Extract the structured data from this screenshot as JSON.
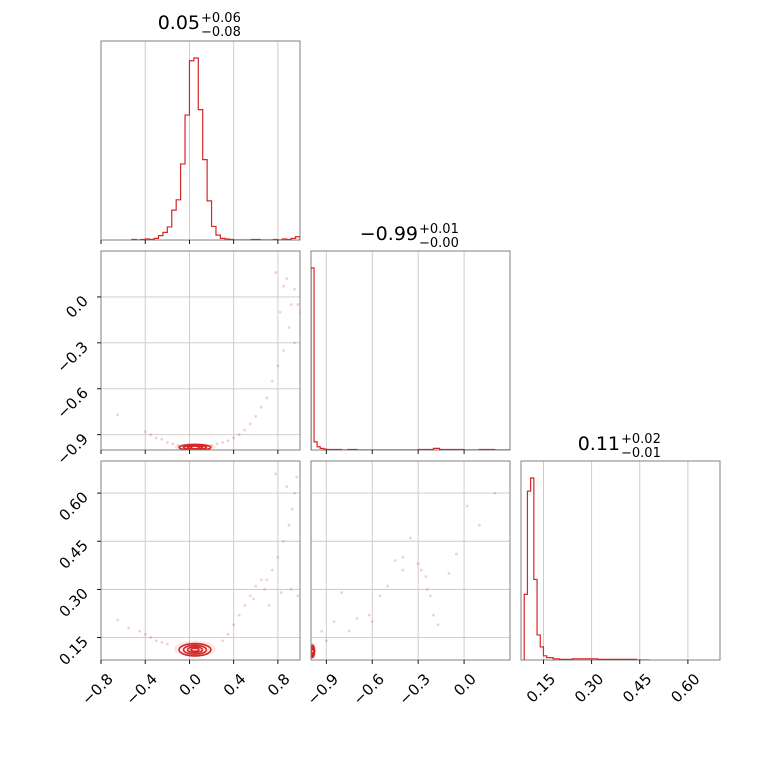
{
  "colors": {
    "accent": "#d62728",
    "frame": "#808080",
    "grid": "#c8c8c8"
  },
  "chart_data": {
    "type": "corner",
    "params": [
      {
        "median_label": "0.05",
        "plus_label": "+0.06",
        "minus_label": "−0.08",
        "range": [
          -0.8,
          1.0
        ]
      },
      {
        "median_label": "−0.99",
        "plus_label": "+0.01",
        "minus_label": "−0.00",
        "range": [
          -1.0,
          0.3
        ]
      },
      {
        "median_label": "0.11",
        "plus_label": "+0.02",
        "minus_label": "−0.01",
        "range": [
          0.08,
          0.7
        ]
      }
    ],
    "ticks": {
      "p0_values": [
        -0.8,
        -0.4,
        0.0,
        0.4,
        0.8
      ],
      "p0_labels": [
        "−0.8",
        "−0.4",
        "0.0",
        "0.4",
        "0.8"
      ],
      "p1_values": [
        -0.9,
        -0.6,
        -0.3,
        0.0
      ],
      "p1_labels": [
        "−0.9",
        "−0.6",
        "−0.3",
        "0.0"
      ],
      "p2_values": [
        0.15,
        0.3,
        0.45,
        0.6
      ],
      "p2_labels": [
        "0.15",
        "0.30",
        "0.45",
        "0.60"
      ]
    },
    "histograms": [
      {
        "param": 0,
        "bins": [
          -0.52,
          -0.48,
          -0.44,
          -0.4,
          -0.36,
          -0.32,
          -0.28,
          -0.24,
          -0.2,
          -0.16,
          -0.12,
          -0.08,
          -0.04,
          0.0,
          0.04,
          0.08,
          0.12,
          0.16,
          0.2,
          0.24,
          0.28,
          0.32,
          0.36,
          0.4,
          0.44,
          0.48,
          0.52,
          0.56,
          0.6,
          0.64,
          0.68,
          0.72,
          0.76,
          0.8,
          0.84,
          0.88,
          0.92,
          0.96,
          1.0
        ],
        "counts": [
          1,
          0,
          1,
          2,
          1,
          3,
          8,
          14,
          24,
          55,
          74,
          140,
          230,
          330,
          335,
          240,
          148,
          72,
          25,
          9,
          3,
          2,
          1,
          0,
          0,
          0,
          0,
          1,
          1,
          0,
          0,
          0,
          1,
          0,
          2,
          1,
          3,
          6
        ]
      },
      {
        "param": 1,
        "bins": [
          -1.0,
          -0.98,
          -0.96,
          -0.94,
          -0.92,
          -0.9,
          -0.88,
          -0.86,
          -0.84,
          -0.82,
          -0.8,
          -0.76,
          -0.7,
          -0.6,
          -0.5,
          -0.4,
          -0.3,
          -0.24,
          -0.2,
          -0.16,
          -0.1,
          0.0,
          0.1,
          0.2,
          0.3
        ],
        "counts": [
          335,
          15,
          6,
          3,
          2,
          1,
          1,
          1,
          1,
          1,
          0,
          1,
          0,
          0,
          0,
          0,
          1,
          1,
          3,
          1,
          1,
          0,
          1,
          0
        ]
      },
      {
        "param": 2,
        "bins": [
          0.09,
          0.1,
          0.11,
          0.12,
          0.13,
          0.14,
          0.15,
          0.16,
          0.18,
          0.2,
          0.24,
          0.28,
          0.32,
          0.36,
          0.4,
          0.44,
          0.48
        ],
        "counts": [
          110,
          283,
          305,
          135,
          42,
          22,
          7,
          4,
          2,
          1,
          2,
          2,
          1,
          1,
          1,
          0
        ]
      }
    ],
    "scatter": [
      {
        "x_param": 0,
        "y_param": 1,
        "kde_center": [
          0.05,
          -0.98
        ],
        "kde_spread": [
          0.09,
          0.012
        ],
        "points": [
          [
            -0.65,
            -0.77
          ],
          [
            -0.4,
            -0.88
          ],
          [
            -0.35,
            -0.9
          ],
          [
            -0.3,
            -0.92
          ],
          [
            -0.25,
            -0.93
          ],
          [
            -0.2,
            -0.95
          ],
          [
            -0.15,
            -0.96
          ],
          [
            -0.1,
            -0.97
          ],
          [
            0.2,
            -0.97
          ],
          [
            0.25,
            -0.96
          ],
          [
            0.3,
            -0.95
          ],
          [
            0.35,
            -0.94
          ],
          [
            0.4,
            -0.92
          ],
          [
            0.45,
            -0.9
          ],
          [
            0.5,
            -0.87
          ],
          [
            0.55,
            -0.83
          ],
          [
            0.6,
            -0.78
          ],
          [
            0.65,
            -0.72
          ],
          [
            0.7,
            -0.66
          ],
          [
            0.75,
            -0.55
          ],
          [
            0.8,
            -0.45
          ],
          [
            0.85,
            -0.35
          ],
          [
            0.9,
            -0.2
          ],
          [
            0.92,
            -0.05
          ],
          [
            0.95,
            0.05
          ],
          [
            0.98,
            -0.05
          ],
          [
            1.0,
            -0.1
          ],
          [
            0.85,
            0.07
          ],
          [
            0.88,
            0.12
          ],
          [
            0.78,
            0.16
          ],
          [
            0.82,
            -0.1
          ],
          [
            0.95,
            -0.3
          ]
        ]
      },
      {
        "x_param": 0,
        "y_param": 2,
        "kde_center": [
          0.05,
          0.115
        ],
        "kde_spread": [
          0.09,
          0.012
        ],
        "points": [
          [
            -0.65,
            0.205
          ],
          [
            -0.55,
            0.18
          ],
          [
            -0.45,
            0.17
          ],
          [
            -0.4,
            0.16
          ],
          [
            -0.35,
            0.15
          ],
          [
            -0.3,
            0.14
          ],
          [
            -0.25,
            0.135
          ],
          [
            -0.2,
            0.13
          ],
          [
            0.3,
            0.14
          ],
          [
            0.35,
            0.16
          ],
          [
            0.4,
            0.19
          ],
          [
            0.45,
            0.22
          ],
          [
            0.5,
            0.25
          ],
          [
            0.55,
            0.28
          ],
          [
            0.6,
            0.31
          ],
          [
            0.65,
            0.33
          ],
          [
            0.7,
            0.33
          ],
          [
            0.75,
            0.36
          ],
          [
            0.8,
            0.4
          ],
          [
            0.85,
            0.45
          ],
          [
            0.9,
            0.5
          ],
          [
            0.93,
            0.55
          ],
          [
            0.95,
            0.6
          ],
          [
            0.97,
            0.65
          ],
          [
            0.88,
            0.62
          ],
          [
            0.78,
            0.66
          ],
          [
            0.68,
            0.3
          ],
          [
            0.58,
            0.27
          ],
          [
            0.83,
            0.29
          ],
          [
            0.98,
            0.28
          ],
          [
            0.92,
            0.3
          ],
          [
            0.72,
            0.25
          ]
        ]
      },
      {
        "x_param": 1,
        "y_param": 2,
        "kde_center": [
          -0.99,
          0.11
        ],
        "kde_spread": [
          0.008,
          0.012
        ],
        "points": [
          [
            -0.85,
            0.2
          ],
          [
            -0.8,
            0.29
          ],
          [
            -0.7,
            0.21
          ],
          [
            -0.62,
            0.22
          ],
          [
            -0.55,
            0.28
          ],
          [
            -0.5,
            0.31
          ],
          [
            -0.45,
            0.39
          ],
          [
            -0.4,
            0.4
          ],
          [
            -0.35,
            0.46
          ],
          [
            -0.3,
            0.38
          ],
          [
            -0.25,
            0.34
          ],
          [
            -0.22,
            0.28
          ],
          [
            -0.2,
            0.22
          ],
          [
            -0.17,
            0.19
          ],
          [
            -0.1,
            0.35
          ],
          [
            -0.05,
            0.41
          ],
          [
            0.02,
            0.56
          ],
          [
            0.1,
            0.5
          ],
          [
            0.2,
            0.6
          ],
          [
            -0.9,
            0.14
          ],
          [
            -0.93,
            0.17
          ],
          [
            -0.6,
            0.2
          ],
          [
            -0.75,
            0.17
          ],
          [
            -0.4,
            0.36
          ],
          [
            -0.28,
            0.36
          ],
          [
            -0.24,
            0.3
          ]
        ]
      }
    ]
  }
}
